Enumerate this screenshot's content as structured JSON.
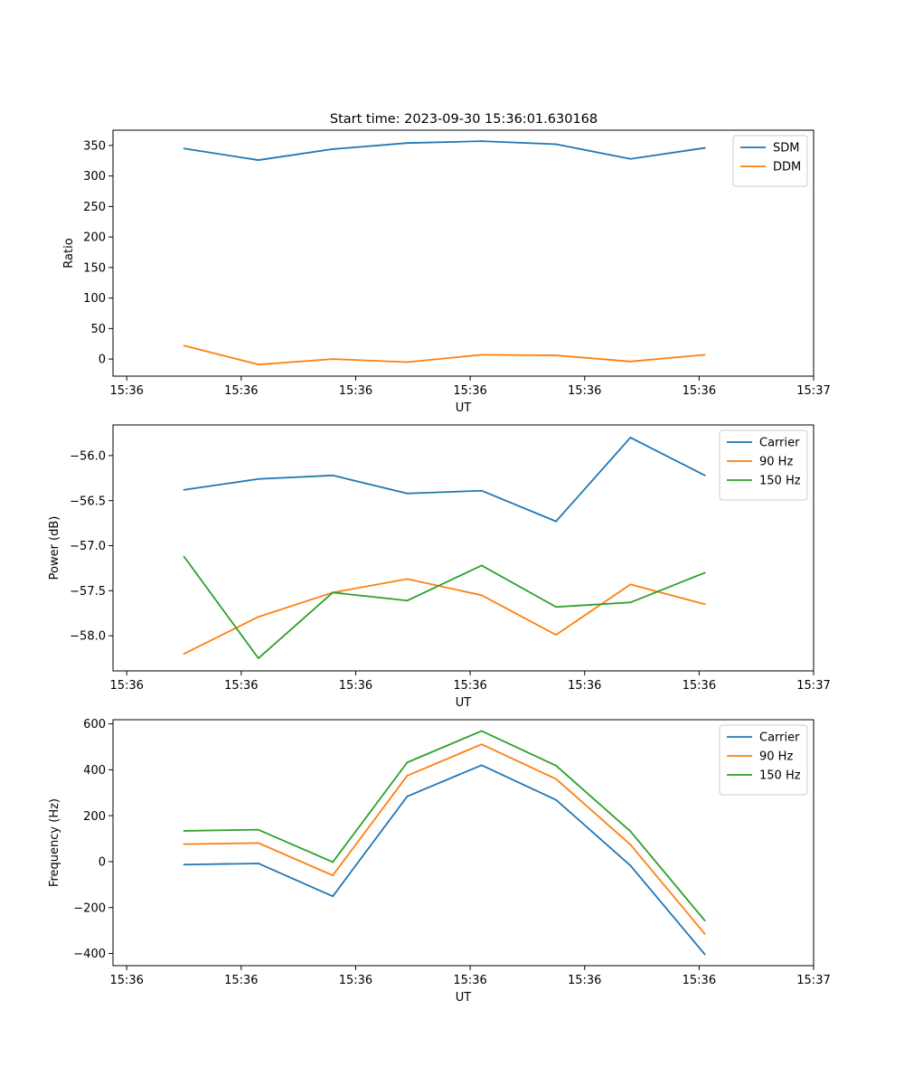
{
  "title": "Start time: 2023-09-30 15:36:01.630168",
  "colors": {
    "blue": "#1f77b4",
    "orange": "#ff7f0e",
    "green": "#2ca02c"
  },
  "chart_data": [
    {
      "type": "line",
      "xlabel": "UT",
      "ylabel": "Ratio",
      "xticks": [
        0,
        1,
        2,
        3,
        4,
        5,
        6
      ],
      "xtick_labels": [
        "15:36",
        "15:36",
        "15:36",
        "15:36",
        "15:36",
        "15:36",
        "15:37"
      ],
      "xlim": [
        -0.12,
        6.0
      ],
      "ylim": [
        -28,
        375
      ],
      "yticks": [
        0,
        50,
        100,
        150,
        200,
        250,
        300,
        350
      ],
      "ytick_labels": [
        "0",
        "50",
        "100",
        "150",
        "200",
        "250",
        "300",
        "350"
      ],
      "legend_position": "top-right",
      "x": [
        0.5,
        1.15,
        1.8,
        2.45,
        3.1,
        3.75,
        4.4,
        5.05
      ],
      "series": [
        {
          "name": "SDM",
          "color": "#1f77b4",
          "values": [
            345,
            326,
            344,
            354,
            357,
            352,
            328,
            346
          ]
        },
        {
          "name": "DDM",
          "color": "#ff7f0e",
          "values": [
            22,
            -9,
            0,
            -5,
            7,
            6,
            -4,
            7
          ]
        }
      ]
    },
    {
      "type": "line",
      "xlabel": "UT",
      "ylabel": "Power (dB)",
      "xticks": [
        0,
        1,
        2,
        3,
        4,
        5,
        6
      ],
      "xtick_labels": [
        "15:36",
        "15:36",
        "15:36",
        "15:36",
        "15:36",
        "15:36",
        "15:37"
      ],
      "xlim": [
        -0.12,
        6.0
      ],
      "ylim": [
        -58.39,
        -55.66
      ],
      "yticks": [
        -56.0,
        -56.5,
        -57.0,
        -57.5,
        -58.0
      ],
      "ytick_labels": [
        "−56.0",
        "−56.5",
        "−57.0",
        "−57.5",
        "−58.0"
      ],
      "legend_position": "top-right",
      "x": [
        0.5,
        1.15,
        1.8,
        2.45,
        3.1,
        3.75,
        4.4,
        5.05
      ],
      "series": [
        {
          "name": "Carrier",
          "color": "#1f77b4",
          "values": [
            -56.38,
            -56.26,
            -56.22,
            -56.42,
            -56.39,
            -56.73,
            -55.8,
            -56.22
          ]
        },
        {
          "name": "90 Hz",
          "color": "#ff7f0e",
          "values": [
            -58.2,
            -57.79,
            -57.52,
            -57.37,
            -57.55,
            -57.99,
            -57.43,
            -57.65
          ]
        },
        {
          "name": "150 Hz",
          "color": "#2ca02c",
          "values": [
            -57.12,
            -58.25,
            -57.52,
            -57.61,
            -57.22,
            -57.68,
            -57.63,
            -57.3
          ]
        }
      ]
    },
    {
      "type": "line",
      "xlabel": "UT",
      "ylabel": "Frequency (Hz)",
      "xticks": [
        0,
        1,
        2,
        3,
        4,
        5,
        6
      ],
      "xtick_labels": [
        "15:36",
        "15:36",
        "15:36",
        "15:36",
        "15:36",
        "15:36",
        "15:37"
      ],
      "xlim": [
        -0.12,
        6.0
      ],
      "ylim": [
        -453,
        618
      ],
      "yticks": [
        -400,
        -200,
        0,
        200,
        400,
        600
      ],
      "ytick_labels": [
        "−400",
        "−200",
        "0",
        "200",
        "400",
        "600"
      ],
      "legend_position": "top-right",
      "x": [
        0.5,
        1.15,
        1.8,
        2.45,
        3.1,
        3.75,
        4.4,
        5.05
      ],
      "series": [
        {
          "name": "Carrier",
          "color": "#1f77b4",
          "values": [
            -13,
            -8,
            -151,
            284,
            420,
            269,
            -17,
            -404
          ]
        },
        {
          "name": "90 Hz",
          "color": "#ff7f0e",
          "values": [
            76,
            81,
            -60,
            374,
            511,
            360,
            74,
            -315
          ]
        },
        {
          "name": "150 Hz",
          "color": "#2ca02c",
          "values": [
            134,
            139,
            -2,
            432,
            569,
            418,
            132,
            -257
          ]
        }
      ]
    }
  ]
}
